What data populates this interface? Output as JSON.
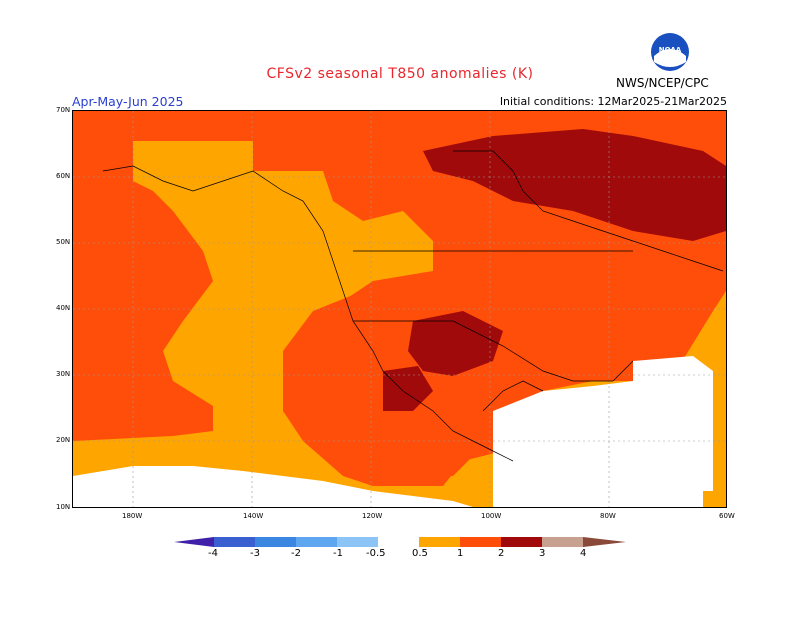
{
  "header": {
    "title": "CFSv2 seasonal T850 anomalies (K)",
    "period": "Apr-May-Jun 2025",
    "initial_conditions": "Initial conditions: 12Mar2025-21Mar2025",
    "agency": "NWS/NCEP/CPC",
    "logo_text": "NOAA"
  },
  "map": {
    "lat_labels": [
      "70N",
      "60N",
      "50N",
      "40N",
      "30N",
      "20N",
      "10N"
    ],
    "lon_labels": [
      "180W",
      "140W",
      "120W",
      "100W",
      "80W",
      "60W"
    ]
  },
  "colorbar": {
    "labels": [
      "-4",
      "-3",
      "-2",
      "-1",
      "-0.5",
      "0.5",
      "1",
      "2",
      "3",
      "4"
    ],
    "colors": [
      "#4020a8",
      "#3a5fd0",
      "#3a86e0",
      "#5ea6f0",
      "#8cc4f5",
      "#ffffff",
      "#ffa500",
      "#ff4d0a",
      "#a00a0a",
      "#c8a090",
      "#8a4a3a"
    ]
  },
  "legend_colors": {
    "low": "#ffa500",
    "mid": "#ff4d0a",
    "high": "#a00a0a",
    "neutral": "#ffffff"
  }
}
